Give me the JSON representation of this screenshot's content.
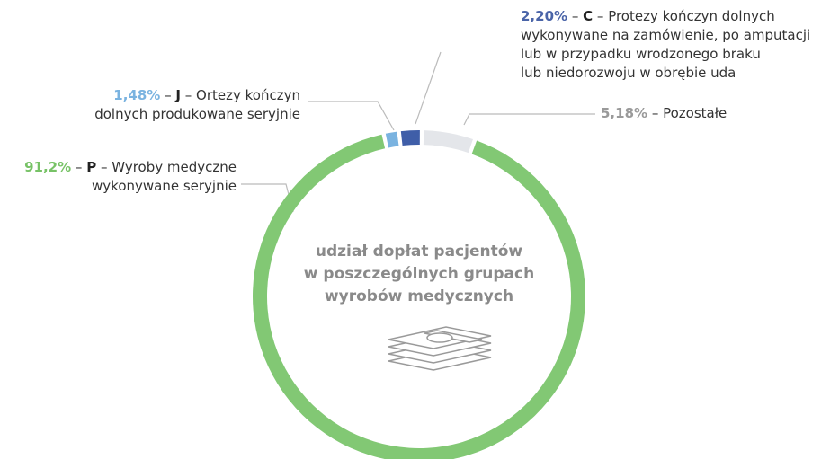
{
  "chart_data": {
    "type": "donut",
    "center_label": "udział dopłat pacjentów\nw poszczególnych grupach\nwyrobów medycznych",
    "separator": "–",
    "codes": [
      "P",
      "J",
      "C",
      null
    ],
    "categories": [
      "Wyroby medyczne\nwykonywane seryjnie",
      "Ortezy kończyn\ndolnych produkowane seryjnie",
      "Protezy kończyn dolnych\nwykonywane na zamówienie, po amputacji\nlub w przypadku wrodzonego braku\nlub niedorozwoju w obrębie uda",
      "Pozostałe"
    ],
    "values": [
      91.2,
      1.48,
      2.2,
      5.18
    ],
    "value_labels": [
      "91,2%",
      "1,48%",
      "2,20%",
      "5,18%"
    ],
    "colors": [
      "#82c874",
      "#7ab3e0",
      "#3f5ea8",
      "#e4e6ea"
    ],
    "label_colors": [
      "#77c266",
      "#7ab3e0",
      "#4a64a8",
      "#9a9a9a"
    ]
  }
}
